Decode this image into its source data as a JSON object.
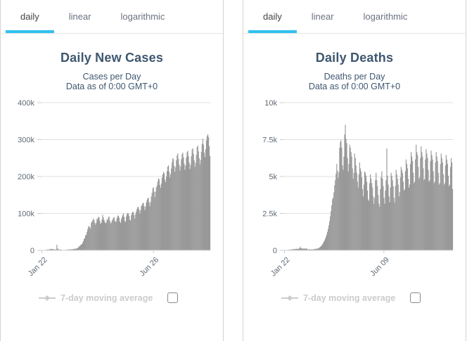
{
  "colors": {
    "accent_blue": "#2fc1ef",
    "bar": "#999999",
    "grid": "#e0e0e0",
    "axis_line": "#ccd1d9",
    "tick": "#cccccc",
    "title": "#3e576f",
    "axis_label": "#5f6a75",
    "tab_active": "#444444",
    "tab_inactive": "#6a7280",
    "legend_hidden": "#cccccc",
    "panel_border": "#d3d3d3",
    "tabs_divider": "#e4e4e4",
    "checkbox_border": "#8a8a8a"
  },
  "panels": [
    {
      "tabs": [
        {
          "label": "daily",
          "active": true
        },
        {
          "label": "linear",
          "active": false
        },
        {
          "label": "logarithmic",
          "active": false
        }
      ],
      "title": "Daily New Cases",
      "subtitle_line1": "Cases per Day",
      "subtitle_line2": "Data as of 0:00 GMT+0",
      "legend_label": "7-day moving average",
      "checkbox_checked": false
    },
    {
      "tabs": [
        {
          "label": "daily",
          "active": true
        },
        {
          "label": "linear",
          "active": false
        },
        {
          "label": "logarithmic",
          "active": false
        }
      ],
      "title": "Daily Deaths",
      "subtitle_line1": "Deaths per Day",
      "subtitle_line2": "Data as of 0:00 GMT+0",
      "legend_label": "7-day moving average",
      "checkbox_checked": false
    }
  ],
  "chart_data": [
    {
      "type": "bar",
      "title": "Daily New Cases",
      "subtitle": "Cases per Day\nData as of 0:00 GMT+0",
      "xlabel": "",
      "ylabel": "",
      "ylim": [
        0,
        400000
      ],
      "ytick_labels": [
        "0",
        "100k",
        "200k",
        "300k",
        "400k"
      ],
      "grid": true,
      "legend": "7-day moving average",
      "legend_position": "bottom",
      "x_ticks": [
        {
          "label": "Jan 22",
          "index": 0
        },
        {
          "label": "Jun 26",
          "index": 156
        }
      ],
      "values": [
        550,
        650,
        800,
        780,
        700,
        900,
        1800,
        1750,
        2000,
        2100,
        2600,
        2800,
        3250,
        3900,
        3700,
        3400,
        3000,
        2650,
        2050,
        2100,
        2550,
        15100,
        5100,
        2650,
        2200,
        2150,
        2000,
        1850,
        750,
        900,
        1000,
        950,
        1100,
        1250,
        1400,
        1550,
        1800,
        2100,
        2400,
        2450,
        2250,
        2650,
        2950,
        3100,
        3450,
        4000,
        4150,
        4350,
        4650,
        5250,
        6600,
        7600,
        11000,
        10950,
        13950,
        15400,
        16900,
        20200,
        24800,
        30700,
        33000,
        40900,
        41300,
        49300,
        56700,
        63300,
        66100,
        62600,
        58500,
        74800,
        77800,
        80800,
        86100,
        82400,
        74600,
        69500,
        75000,
        85100,
        84900,
        90700,
        89600,
        80000,
        71200,
        74300,
        82600,
        95900,
        88800,
        81700,
        77000,
        73100,
        75200,
        84300,
        82100,
        89100,
        91800,
        80300,
        72900,
        75000,
        80200,
        84100,
        88200,
        90100,
        80400,
        76200,
        79300,
        87700,
        93100,
        94500,
        88600,
        77900,
        74000,
        84400,
        90300,
        95200,
        99700,
        90800,
        79100,
        76800,
        91400,
        97900,
        101300,
        99500,
        93600,
        82700,
        80900,
        94700,
        100900,
        104600,
        102900,
        95300,
        86100,
        98200,
        105600,
        112400,
        116900,
        117700,
        109800,
        99800,
        108900,
        119400,
        122500,
        127800,
        128700,
        119300,
        109100,
        118600,
        129400,
        136100,
        140700,
        142500,
        129800,
        119900,
        131600,
        145800,
        155300,
        167400,
        170900,
        158600,
        144200,
        158900,
        170500,
        176300,
        186400,
        194800,
        192300,
        176800,
        168900,
        181400,
        196900,
        205700,
        212400,
        208900,
        191600,
        184300,
        199200,
        214500,
        226800,
        229900,
        213100,
        197400,
        206600,
        221800,
        237900,
        249700,
        246300,
        228800,
        212900,
        225400,
        243800,
        256900,
        262400,
        247600,
        231900,
        215600,
        227400,
        246800,
        260300,
        264700,
        251800,
        234600,
        218300,
        229700,
        251400,
        265900,
        269800,
        255100,
        237600,
        220400,
        231800,
        254700,
        272900,
        276400,
        261300,
        243800,
        226100,
        236900,
        258300,
        279600,
        283700,
        268200,
        249500,
        232600,
        244900,
        266800,
        288400,
        301900,
        286300,
        264700,
        252300,
        273600,
        297800,
        309400,
        314200,
        306800,
        282400,
        255700
      ]
    },
    {
      "type": "bar",
      "title": "Daily Deaths",
      "subtitle": "Deaths per Day\nData as of 0:00 GMT+0",
      "xlabel": "",
      "ylabel": "",
      "ylim": [
        0,
        10000
      ],
      "ytick_labels": [
        "0",
        "2.5k",
        "5k",
        "7.5k",
        "10k"
      ],
      "grid": true,
      "legend": "7-day moving average",
      "legend_position": "bottom",
      "x_ticks": [
        {
          "label": "Jan 22",
          "index": 0
        },
        {
          "label": "Jun 09",
          "index": 139
        }
      ],
      "values": [
        9,
        16,
        15,
        24,
        26,
        26,
        38,
        43,
        46,
        45,
        64,
        66,
        73,
        73,
        86,
        89,
        97,
        108,
        97,
        108,
        97,
        146,
        254,
        143,
        142,
        106,
        98,
        136,
        115,
        109,
        97,
        150,
        71,
        52,
        65,
        73,
        59,
        64,
        67,
        58,
        68,
        75,
        85,
        98,
        105,
        110,
        120,
        135,
        160,
        190,
        230,
        280,
        340,
        410,
        490,
        580,
        680,
        790,
        920,
        1070,
        1250,
        1460,
        1700,
        1980,
        2300,
        2660,
        3050,
        3460,
        3560,
        3920,
        4400,
        4750,
        5200,
        5850,
        5400,
        4900,
        5300,
        6950,
        7350,
        7450,
        6950,
        5750,
        5450,
        6350,
        7850,
        8500,
        7550,
        7250,
        6250,
        5350,
        5850,
        7150,
        6950,
        6650,
        6350,
        5550,
        4850,
        5250,
        6550,
        6250,
        5750,
        5250,
        4650,
        4250,
        5150,
        5950,
        5550,
        5350,
        4950,
        4150,
        3650,
        4450,
        5350,
        5250,
        5050,
        4650,
        4050,
        3450,
        3350,
        4550,
        5150,
        4850,
        4550,
        4250,
        3650,
        3150,
        3550,
        4750,
        5250,
        4750,
        4350,
        3750,
        3150,
        2950,
        4150,
        4950,
        5350,
        4850,
        4350,
        3550,
        3150,
        4050,
        4750,
        6900,
        5050,
        4450,
        3650,
        3250,
        4250,
        5250,
        5050,
        4750,
        4350,
        3550,
        3250,
        4350,
        5450,
        5150,
        4850,
        4450,
        3650,
        3950,
        4950,
        5650,
        5450,
        5250,
        4650,
        4050,
        4150,
        5350,
        6150,
        5850,
        5550,
        4850,
        4250,
        4450,
        5850,
        6650,
        6350,
        6050,
        5250,
        4550,
        4650,
        6150,
        7150,
        6650,
        6450,
        5650,
        4850,
        4950,
        6250,
        7050,
        6650,
        6350,
        5550,
        4750,
        4850,
        6150,
        6850,
        6550,
        6250,
        5450,
        4650,
        4750,
        6050,
        6750,
        6450,
        6150,
        5350,
        4550,
        4650,
        5950,
        6650,
        6350,
        6050,
        5250,
        4450,
        4550,
        5850,
        6550,
        6250,
        5950,
        5150,
        4450,
        4550,
        5750,
        6450,
        6150,
        5850,
        5050,
        4350,
        4450,
        5650,
        6250,
        5950,
        4150
      ]
    }
  ]
}
